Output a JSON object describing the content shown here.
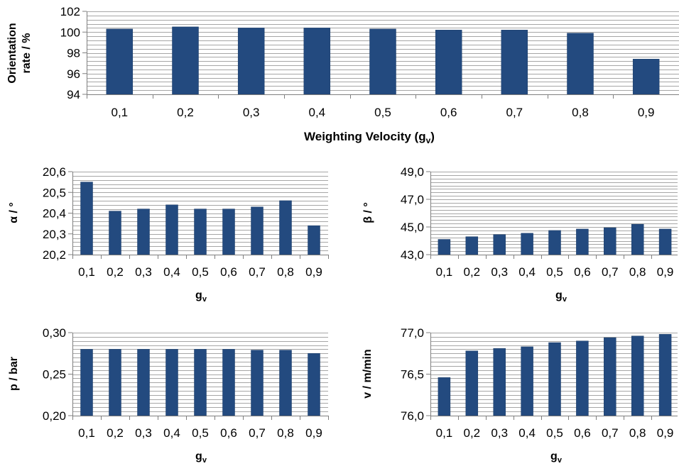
{
  "colors": {
    "bar": "#234a7f",
    "bar_edge": "#1c3c68",
    "grid": "#a6a6a6",
    "axis": "#7f7f7f",
    "text": "#000000"
  },
  "chart_data": [
    {
      "type": "bar",
      "categories": [
        "0,1",
        "0,2",
        "0,3",
        "0,4",
        "0,5",
        "0,6",
        "0,7",
        "0,8",
        "0,9"
      ],
      "values": [
        100.3,
        100.5,
        100.4,
        100.4,
        100.3,
        100.2,
        100.2,
        99.9,
        97.4
      ],
      "ylabel_lines": [
        "Orientation",
        "rate / %"
      ],
      "xlabel": "Weighting Velocity (g",
      "xlabel_sub": "v",
      "xlabel_suffix": ")",
      "ylim": [
        94,
        102
      ],
      "yticks": [
        "94",
        "96",
        "98",
        "100",
        "102"
      ],
      "ytick_values": [
        94,
        96,
        98,
        100,
        102
      ],
      "grid_step": 0.4
    },
    {
      "type": "bar",
      "categories": [
        "0,1",
        "0,2",
        "0,3",
        "0,4",
        "0,5",
        "0,6",
        "0,7",
        "0,8",
        "0,9"
      ],
      "values": [
        20.55,
        20.41,
        20.42,
        20.44,
        20.42,
        20.42,
        20.43,
        20.46,
        20.34
      ],
      "ylabel_lines": [
        "α / °"
      ],
      "xlabel": "g",
      "xlabel_sub": "v",
      "xlabel_suffix": "",
      "ylim": [
        20.2,
        20.6
      ],
      "yticks": [
        "20,2",
        "20,3",
        "20,4",
        "20,5",
        "20,6"
      ],
      "ytick_values": [
        20.2,
        20.3,
        20.4,
        20.5,
        20.6
      ],
      "grid_step": 0.02
    },
    {
      "type": "bar",
      "categories": [
        "0,1",
        "0,2",
        "0,3",
        "0,4",
        "0,5",
        "0,6",
        "0,7",
        "0,8",
        "0,9"
      ],
      "values": [
        44.1,
        44.3,
        44.45,
        44.55,
        44.75,
        44.85,
        44.95,
        45.2,
        44.85
      ],
      "ylabel_lines": [
        "β / °"
      ],
      "xlabel": "g",
      "xlabel_sub": "v",
      "xlabel_suffix": "",
      "ylim": [
        43.0,
        49.0
      ],
      "yticks": [
        "43,0",
        "45,0",
        "47,0",
        "49,0"
      ],
      "ytick_values": [
        43,
        45,
        47,
        49
      ],
      "grid_step": 0.25
    },
    {
      "type": "bar",
      "categories": [
        "0,1",
        "0,2",
        "0,3",
        "0,4",
        "0,5",
        "0,6",
        "0,7",
        "0,8",
        "0,9"
      ],
      "values": [
        0.28,
        0.28,
        0.28,
        0.28,
        0.28,
        0.28,
        0.279,
        0.279,
        0.275
      ],
      "ylabel_lines": [
        "p / bar"
      ],
      "xlabel": "g",
      "xlabel_sub": "v",
      "xlabel_suffix": "",
      "ylim": [
        0.2,
        0.3
      ],
      "yticks": [
        "0,20",
        "0,25",
        "0,30"
      ],
      "ytick_values": [
        0.2,
        0.25,
        0.3
      ],
      "grid_step": 0.005
    },
    {
      "type": "bar",
      "categories": [
        "0,1",
        "0,2",
        "0,3",
        "0,4",
        "0,5",
        "0,6",
        "0,7",
        "0,8",
        "0,9"
      ],
      "values": [
        76.46,
        76.78,
        76.81,
        76.83,
        76.88,
        76.9,
        76.94,
        76.96,
        76.98
      ],
      "ylabel_lines": [
        "v / m/min"
      ],
      "xlabel": "g",
      "xlabel_sub": "v",
      "xlabel_suffix": "",
      "ylim": [
        76.0,
        77.0
      ],
      "yticks": [
        "76,0",
        "76,5",
        "77,0"
      ],
      "ytick_values": [
        76,
        76.5,
        77
      ],
      "grid_step": 0.05
    }
  ]
}
